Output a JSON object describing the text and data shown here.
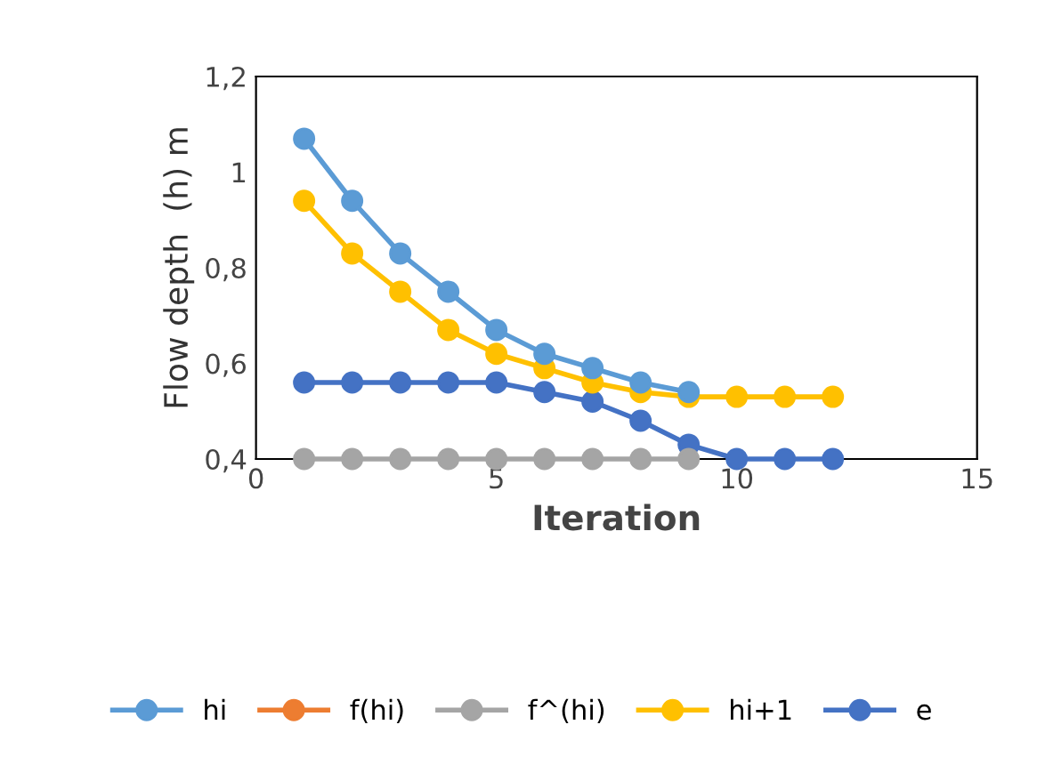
{
  "chart_data": {
    "type": "line",
    "xlabel": "Iteration",
    "ylabel": "Flow depth  (h) m",
    "x": [
      1,
      2,
      3,
      4,
      5,
      6,
      7,
      8,
      9,
      10,
      11,
      12
    ],
    "series": [
      {
        "name": "hi",
        "color": "#5b9bd5",
        "values": [
          1.07,
          0.94,
          0.83,
          0.75,
          0.67,
          0.62,
          0.59,
          0.56,
          0.54,
          null,
          null,
          null
        ]
      },
      {
        "name": "f(hi)",
        "color": "#ed7d31",
        "values": [
          null,
          null,
          null,
          null,
          null,
          null,
          null,
          null,
          null,
          null,
          null,
          null
        ]
      },
      {
        "name": "f^(hi)",
        "color": "#a5a5a5",
        "values": [
          0.4,
          0.4,
          0.4,
          0.4,
          0.4,
          0.4,
          0.4,
          0.4,
          0.4,
          null,
          null,
          null
        ]
      },
      {
        "name": "hi+1",
        "color": "#ffc000",
        "values": [
          0.94,
          0.83,
          0.75,
          0.67,
          0.62,
          0.59,
          0.56,
          0.54,
          0.53,
          0.53,
          0.53,
          0.53
        ]
      },
      {
        "name": "e",
        "color": "#4472c4",
        "values": [
          0.56,
          0.56,
          0.56,
          0.56,
          0.56,
          0.54,
          0.52,
          0.48,
          0.43,
          0.4,
          0.4,
          0.4
        ]
      }
    ],
    "xlim": [
      0,
      15
    ],
    "xticks": [
      0,
      5,
      10,
      15
    ],
    "ylim": [
      0.4,
      1.2
    ],
    "yticks": [
      {
        "value": 0.4,
        "label": "0,4"
      },
      {
        "value": 0.6,
        "label": "0,6"
      },
      {
        "value": 0.8,
        "label": "0,8"
      },
      {
        "value": 1,
        "label": "1"
      },
      {
        "value": 1.2,
        "label": "1,2"
      }
    ],
    "grid": false,
    "legend": "bottom",
    "marker": "circle",
    "line_style": "solid"
  }
}
